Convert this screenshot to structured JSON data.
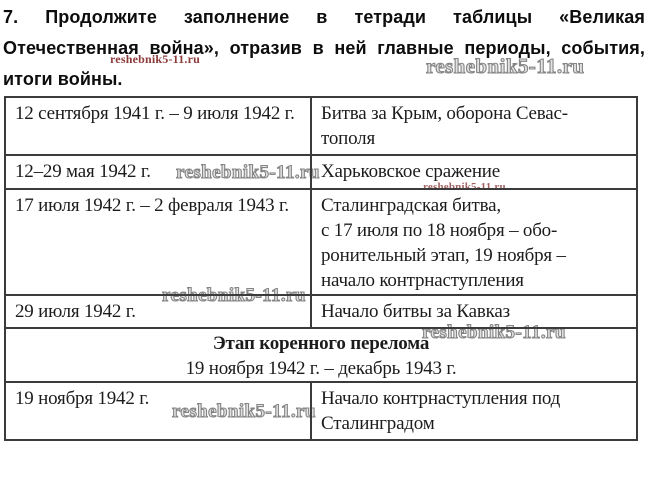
{
  "heading": {
    "line1": "7. Продолжите заполнение в тетради таблицы «Великая",
    "line2": "Отечественная война», отразив в ней главные периоды, события,",
    "line3": "итоги войны."
  },
  "watermark": {
    "text": "reshebnik5-11.ru",
    "red_color": "#8d3a3a",
    "outline_color": "#858585"
  },
  "table": {
    "border_color": "#3b3b3b",
    "rows": [
      {
        "period": "12 сентября 1941 г. – 9 июля 1942 г.",
        "event": "Битва за Крым, оборона Севас-\nтополя"
      },
      {
        "period": "12–29 мая 1942 г.",
        "event": "Харьковское сражение"
      },
      {
        "period": "17 июля 1942 г. – 2 февраля 1943 г.",
        "event": "Сталинградская битва,\nс 17 июля по 18 ноября – обо-\nронительный этап, 19 ноября –\nначало контрнаступления"
      },
      {
        "period": "29 июля 1942 г.",
        "event": "Начало битвы за Кавказ"
      },
      {
        "period": "19 ноября 1942 г.",
        "event": "Начало контрнаступления под\nСталинградом"
      }
    ],
    "merged": {
      "title": "Этап коренного перелома",
      "period": "19 ноября 1942 г. – декабрь 1943 г."
    }
  }
}
